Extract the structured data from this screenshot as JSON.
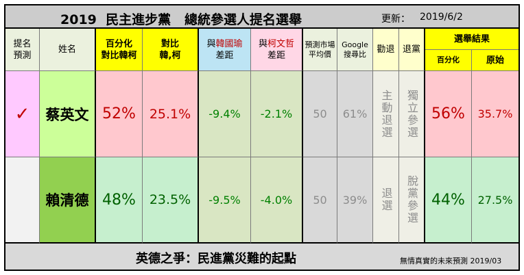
{
  "title": {
    "main": "2019  民主進步黨   總統參選人提名選舉",
    "update_label": "更新：",
    "update_date": "2019/6/2"
  },
  "headers": {
    "nominee_line1": "提名",
    "nominee_line2": "預測",
    "name": "姓名",
    "pct_line1": "百分化",
    "pct_line2": "對比韓柯",
    "cmp_line1": "對比",
    "cmp_line2": "韓,柯",
    "vs_han_prefix": "與",
    "vs_han_name": "韓國瑜",
    "vs_han_suffix": "差距",
    "vs_ko_prefix": "與",
    "vs_ko_name": "柯文哲",
    "vs_ko_suffix": "差距",
    "market_line1": "預測市場",
    "market_line2": "平均價",
    "google_line1": "Google",
    "google_line2": "搜尋比",
    "persuade": "勸退",
    "quit_party": "退黨",
    "result": "選舉結果",
    "result_pct": "百分化",
    "result_raw": "原始"
  },
  "candidates": [
    {
      "mark": "✓",
      "name": "蔡英文",
      "pct": "52%",
      "cmp": "25.1%",
      "vs_han": "-9.4%",
      "vs_ko": "-2.1%",
      "market": "50",
      "google": "61%",
      "persuade": "主動退選",
      "quit_party": "獨立參選",
      "result_pct": "56%",
      "result_raw": "35.7%"
    },
    {
      "mark": "",
      "name": "賴清德",
      "pct": "48%",
      "cmp": "23.5%",
      "vs_han": "-9.5%",
      "vs_ko": "-4.0%",
      "market": "50",
      "google": "39%",
      "persuade": "退選",
      "quit_party": "脫黨參選",
      "result_pct": "44%",
      "result_raw": "27.5%"
    }
  ],
  "footer": {
    "headline": "英德之爭：民進黨災難的起點",
    "credit": "無情真實的未來預測 2019/03"
  },
  "colors": {
    "title_bg": "#cccccc",
    "header_bg": "#ebf1de",
    "yellow": "#ffff00",
    "han_blue": "#bde4f4",
    "ko_pink": "#ffd7e6",
    "mark_pink": "#ffc9ff",
    "name_green": "#ccff99",
    "name_green_dark": "#92d050",
    "pct_red_bg": "#ffc8ce",
    "pct_green_bg": "#c6efce",
    "diff_bg": "#d9e6c3",
    "gray_bg": "#d9d9d9",
    "beige_bg": "#efefe6",
    "red_text": "#c00000",
    "green_text": "#008000"
  }
}
